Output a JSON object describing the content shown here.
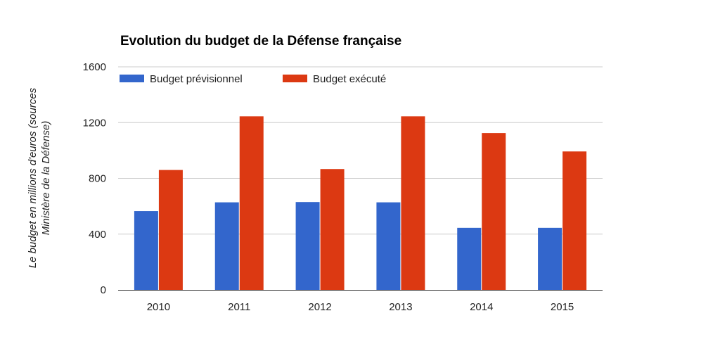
{
  "chart_data": {
    "type": "bar",
    "title": "Evolution du budget de la Défense française",
    "xlabel": "",
    "ylabel_lines": [
      "Le budget en millions d'euros (sources",
      "Ministère de la Défense)"
    ],
    "categories": [
      "2010",
      "2011",
      "2012",
      "2013",
      "2014",
      "2015"
    ],
    "series": [
      {
        "name": "Budget prévisionnel",
        "color": "#3366cc",
        "values": [
          565,
          628,
          630,
          628,
          445,
          445
        ]
      },
      {
        "name": "Budget exécuté",
        "color": "#dc3912",
        "values": [
          860,
          1245,
          867,
          1245,
          1125,
          993
        ]
      }
    ],
    "ylim": [
      0,
      1600
    ],
    "yticks": [
      0,
      400,
      800,
      1200,
      1600
    ],
    "grid": true,
    "legend_position": "top-left"
  }
}
